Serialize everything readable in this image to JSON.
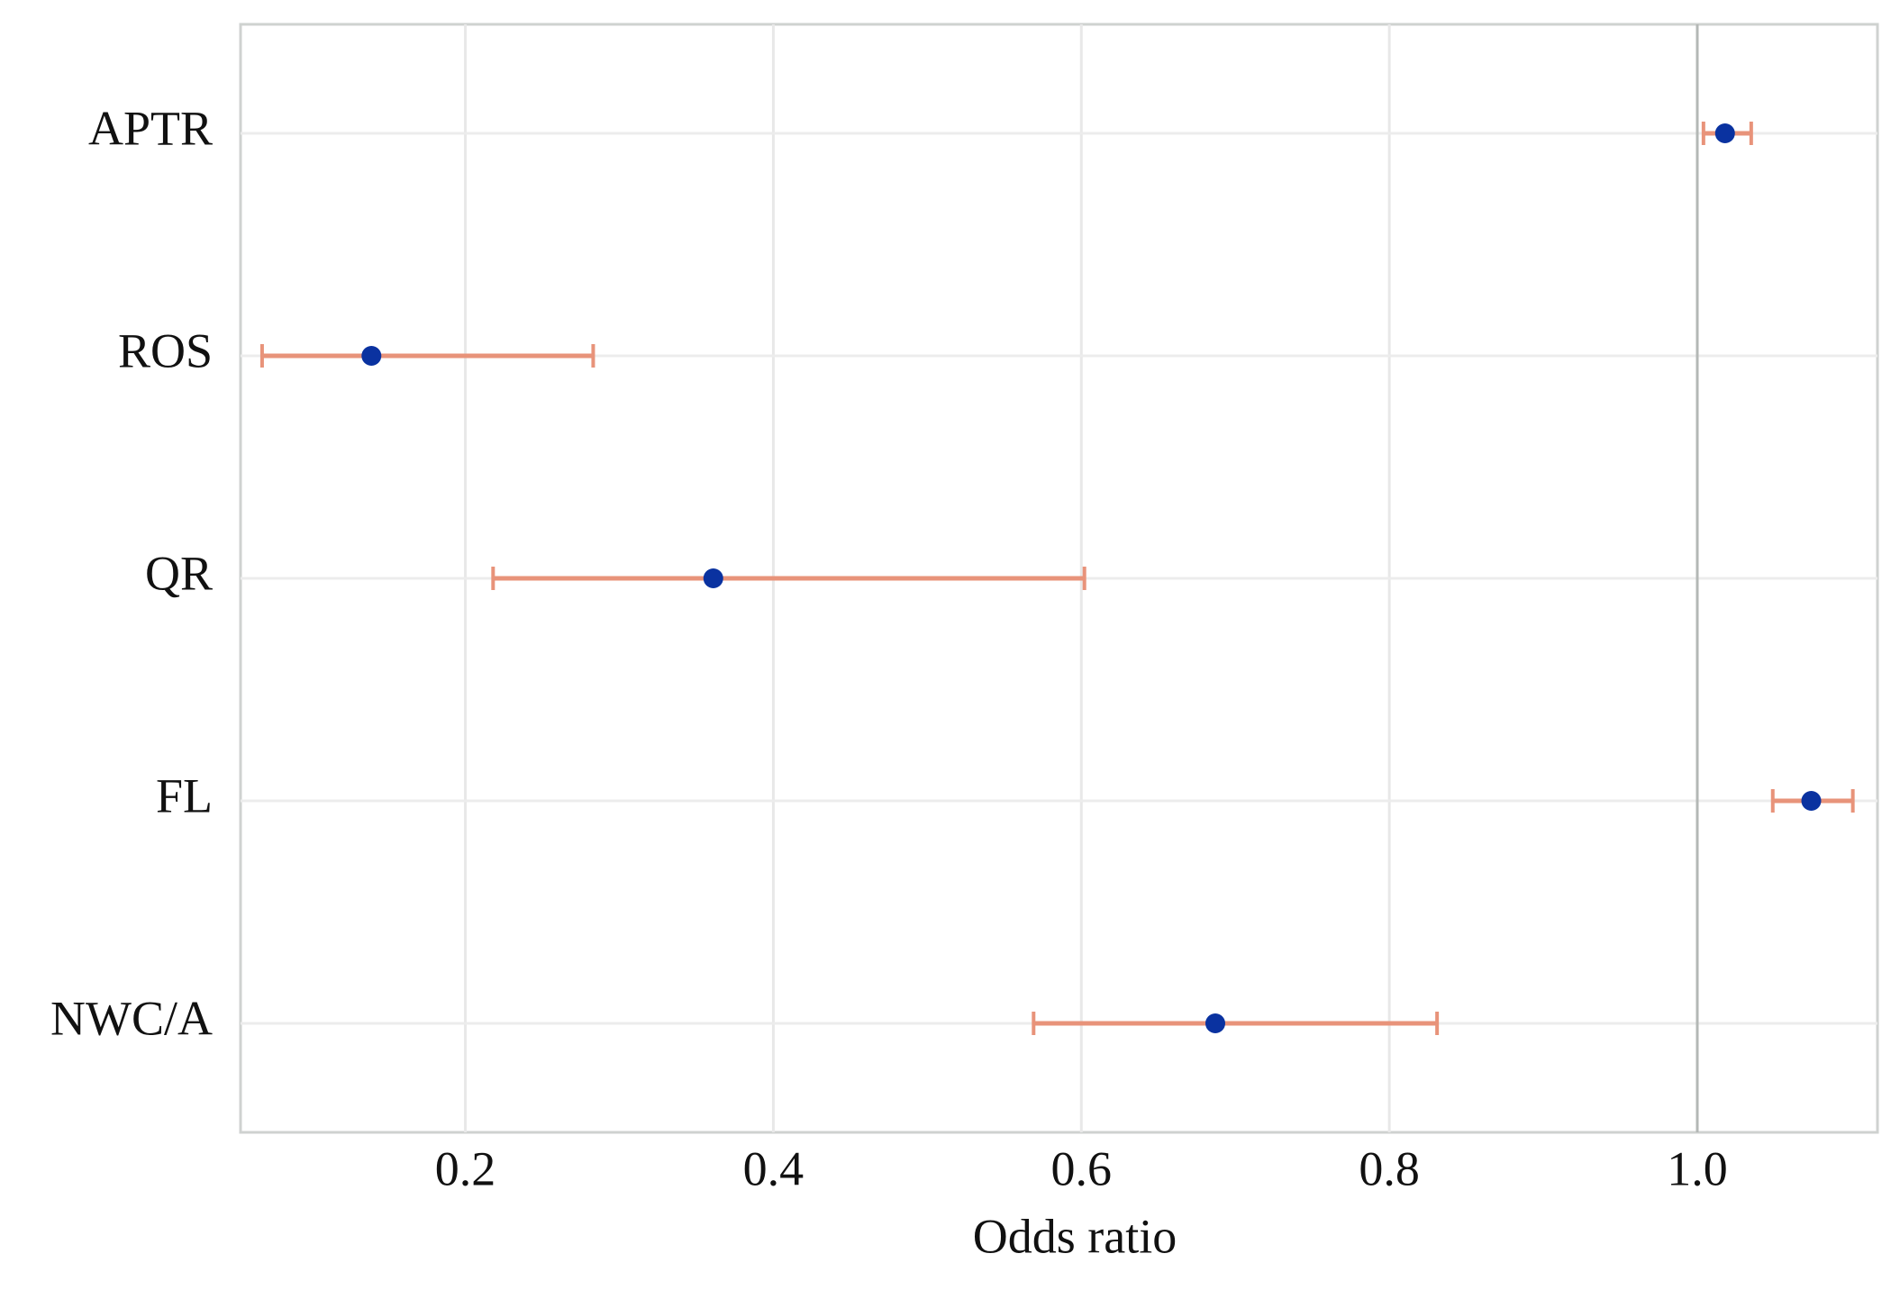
{
  "chart_data": {
    "type": "forest",
    "x_label": "Odds ratio",
    "categories": [
      "APTR",
      "ROS",
      "QR",
      "FL",
      "NWC/A"
    ],
    "values": [
      1.018,
      0.139,
      0.361,
      1.074,
      0.687
    ],
    "lower": [
      1.004,
      0.068,
      0.218,
      1.049,
      0.569
    ],
    "upper": [
      1.035,
      0.283,
      0.602,
      1.101,
      0.831
    ],
    "point_color": "#0a32a0",
    "ci_color": "#e8937a",
    "xlim": [
      0.054,
      1.117
    ],
    "xticks": [
      0.2,
      0.4,
      0.6,
      0.8,
      {
        "value": 1,
        "label": "1.0"
      }
    ],
    "reference_line": 1,
    "grid": true
  }
}
